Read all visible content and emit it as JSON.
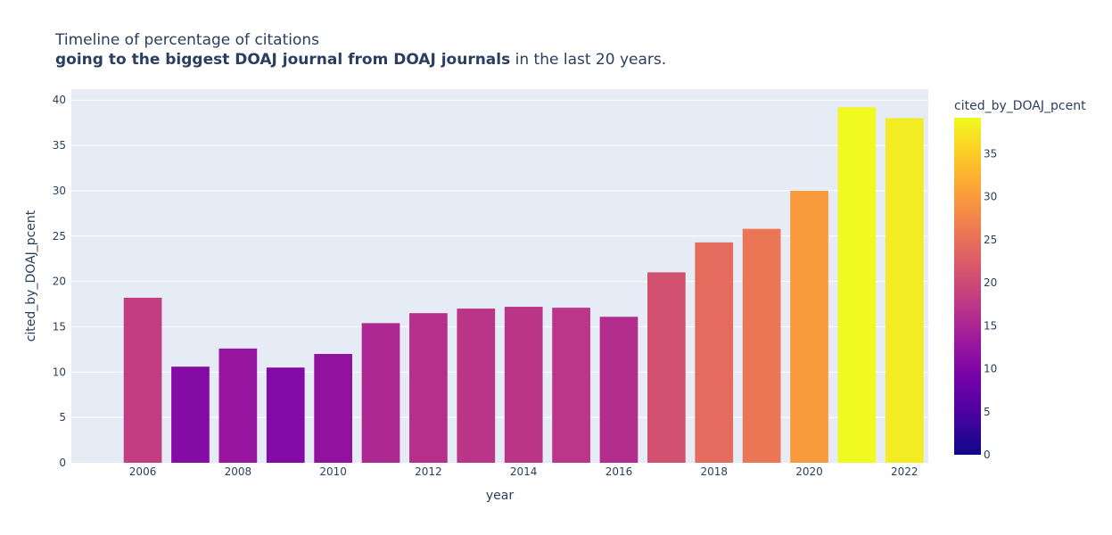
{
  "chart_data": {
    "type": "bar",
    "title": {
      "line1": "Timeline of percentage of citations",
      "line2_bold": "going to the biggest DOAJ journal from DOAJ journals",
      "line2_rest": " in the last 20 years."
    },
    "xlabel": "year",
    "ylabel": "cited_by_DOAJ_pcent",
    "x": [
      2006,
      2007,
      2008,
      2009,
      2010,
      2011,
      2012,
      2013,
      2014,
      2015,
      2016,
      2017,
      2018,
      2019,
      2020,
      2021,
      2022
    ],
    "values": [
      18.2,
      10.6,
      12.6,
      10.5,
      12.0,
      15.4,
      16.5,
      17.0,
      17.2,
      17.1,
      16.1,
      21.0,
      24.3,
      25.8,
      30.0,
      39.2,
      38.0
    ],
    "xlim": [
      2004.5,
      2022.5
    ],
    "ylim": [
      0,
      41.2
    ],
    "xticks": [
      "2006",
      "2008",
      "2010",
      "2012",
      "2014",
      "2016",
      "2018",
      "2020",
      "2022"
    ],
    "yticks": [
      "0",
      "5",
      "10",
      "15",
      "20",
      "25",
      "30",
      "35",
      "40"
    ],
    "grid": true,
    "colorbar": {
      "title": "cited_by_DOAJ_pcent",
      "range": [
        0,
        39.2
      ],
      "ticks": [
        "0",
        "5",
        "10",
        "15",
        "20",
        "25",
        "30",
        "35"
      ],
      "colorscale": [
        "#0d0887",
        "#46039f",
        "#7201a8",
        "#9c179e",
        "#bd3786",
        "#d8576b",
        "#ed7953",
        "#fb9f3a",
        "#fdca26",
        "#f0f921"
      ]
    },
    "colors": {
      "plot_bg": "#e5ecf6",
      "grid": "#ffffff",
      "text": "#2a3f5f"
    }
  }
}
